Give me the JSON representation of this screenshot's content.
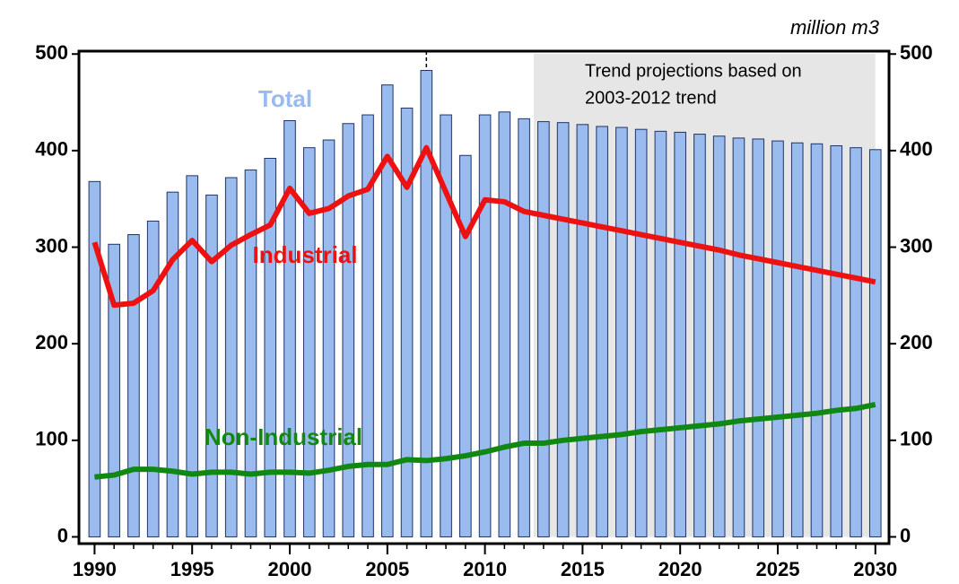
{
  "chart_data": {
    "type": "bar_line",
    "unit_label": "million m3",
    "shade": {
      "x": [
        2013,
        2030
      ],
      "lines": [
        "Trend projections based on",
        "2003-2012 trend"
      ]
    },
    "vline": 2007,
    "x": [
      1990,
      1991,
      1992,
      1993,
      1994,
      1995,
      1996,
      1997,
      1998,
      1999,
      2000,
      2001,
      2002,
      2003,
      2004,
      2005,
      2006,
      2007,
      2008,
      2009,
      2010,
      2011,
      2012,
      2013,
      2014,
      2015,
      2016,
      2017,
      2018,
      2019,
      2020,
      2021,
      2022,
      2023,
      2024,
      2025,
      2026,
      2027,
      2028,
      2029,
      2030
    ],
    "series": [
      {
        "name": "Total",
        "kind": "bar",
        "color": "#99bbee",
        "label_color": "#99bbee",
        "values": [
          368,
          303,
          313,
          327,
          357,
          374,
          354,
          372,
          380,
          392,
          431,
          403,
          411,
          428,
          437,
          468,
          444,
          483,
          437,
          395,
          437,
          440,
          433,
          430,
          429,
          427,
          425,
          424,
          422,
          420,
          419,
          417,
          415,
          413,
          412,
          410,
          408,
          407,
          405,
          403,
          401
        ]
      },
      {
        "name": "Industrial",
        "kind": "line",
        "color": "#ee1111",
        "values": [
          305,
          240,
          242,
          255,
          287,
          307,
          285,
          302,
          313,
          323,
          361,
          335,
          340,
          353,
          360,
          394,
          362,
          403,
          357,
          311,
          349,
          347,
          337,
          333,
          329,
          325,
          321,
          317,
          313,
          309,
          305,
          301,
          297,
          292,
          288,
          284,
          280,
          276,
          272,
          268,
          264
        ]
      },
      {
        "name": "Non-Industrial",
        "kind": "line",
        "color": "#118811",
        "values": [
          62,
          64,
          70,
          70,
          68,
          65,
          67,
          67,
          65,
          67,
          67,
          66,
          69,
          73,
          75,
          75,
          80,
          79,
          81,
          84,
          88,
          93,
          97,
          97,
          100,
          102,
          104,
          106,
          109,
          111,
          113,
          115,
          117,
          120,
          122,
          124,
          126,
          128,
          131,
          133,
          137
        ]
      }
    ],
    "xlim": [
      1989.2,
      2030.7
    ],
    "xticks": [
      1990,
      1995,
      2000,
      2005,
      2010,
      2015,
      2020,
      2025,
      2030
    ],
    "ylim": [
      -7,
      503
    ],
    "yticks": [
      0,
      100,
      200,
      300,
      400,
      500
    ],
    "y2lim": [
      -7,
      503
    ],
    "y2ticks": [
      0,
      100,
      200,
      300,
      400,
      500
    ]
  }
}
